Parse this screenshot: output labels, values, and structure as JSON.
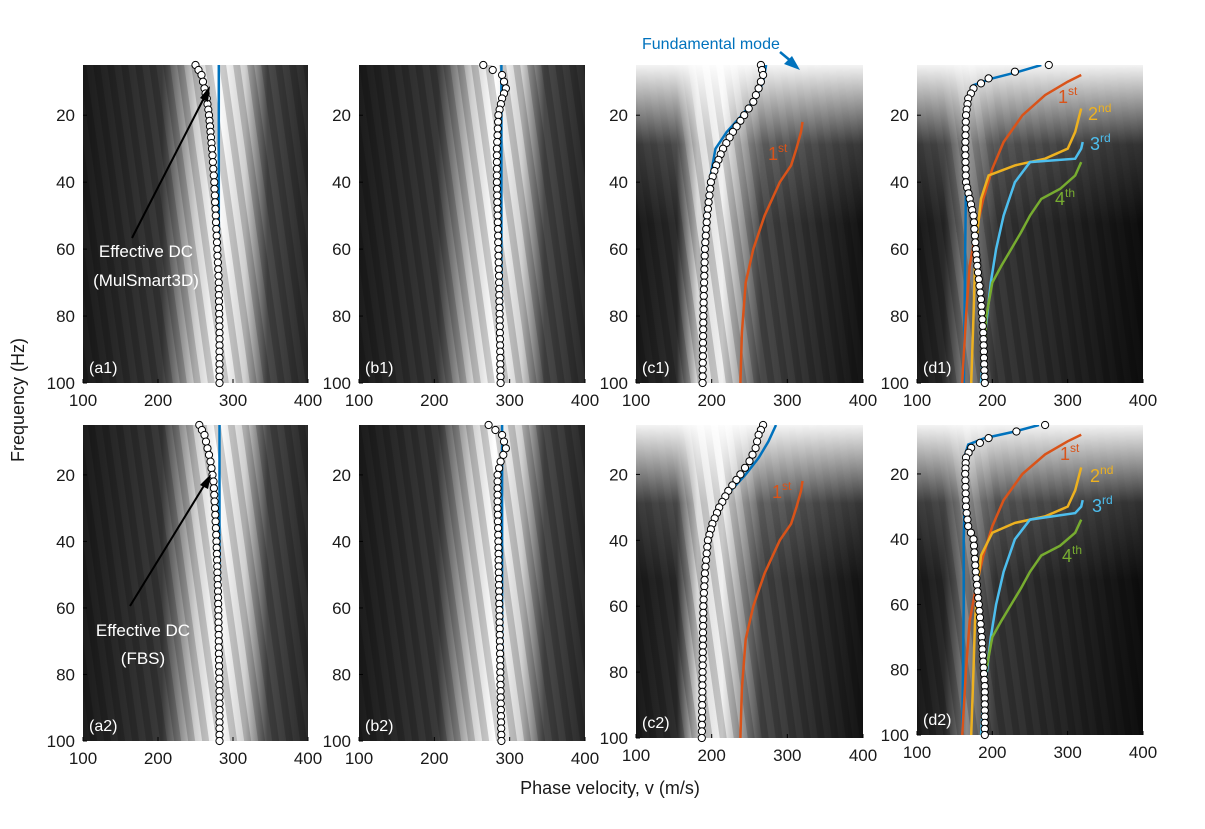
{
  "figure": {
    "x_axis_label": "Phase velocity, v (m/s)",
    "y_axis_label": "Frequency (Hz)",
    "colors": {
      "fundamental": "#0072bd",
      "mode_1st": "#d95319",
      "mode_2nd": "#edb120",
      "mode_3rd": "#4dbeee",
      "mode_4th": "#77ac30",
      "picks_marker": "#000000",
      "annotation_white": "#ffffff"
    },
    "annotations": {
      "fundamental_mode": "Fundamental mode",
      "effective_dc_1": "Effective DC",
      "effective_dc_1_sub": "(MulSmart3D)",
      "effective_dc_2": "Effective DC",
      "effective_dc_2_sub": "(FBS)",
      "mode_labels": {
        "first": {
          "base": "1",
          "sup": "st"
        },
        "second": {
          "base": "2",
          "sup": "nd"
        },
        "third": {
          "base": "3",
          "sup": "rd"
        },
        "fourth": {
          "base": "4",
          "sup": "th"
        }
      }
    }
  },
  "chart_data": [
    {
      "panel": "(a1)",
      "type": "line",
      "xlim": [
        100,
        400
      ],
      "ylim": [
        5,
        100
      ],
      "y_reversed": true,
      "xticks": [
        100,
        200,
        300,
        400
      ],
      "yticks": [
        20,
        40,
        60,
        80,
        100
      ],
      "background": "dispersion-image (grayscale)",
      "series": [
        {
          "mode": "fundamental",
          "x": [
            281,
            281
          ],
          "y": [
            5,
            100
          ]
        }
      ],
      "picks": {
        "x": [
          250,
          258,
          262,
          265,
          268,
          270,
          272,
          275,
          277,
          279,
          281,
          282,
          282
        ],
        "y": [
          5,
          8,
          12,
          15,
          20,
          25,
          30,
          40,
          50,
          60,
          70,
          85,
          100
        ]
      }
    },
    {
      "panel": "(b1)",
      "type": "line",
      "xlim": [
        100,
        400
      ],
      "ylim": [
        5,
        100
      ],
      "y_reversed": true,
      "xticks": [
        100,
        200,
        300,
        400
      ],
      "yticks": [
        20,
        40,
        60,
        80,
        100
      ],
      "background": "dispersion-image (grayscale)",
      "series": [
        {
          "mode": "fundamental",
          "x": [
            289,
            289
          ],
          "y": [
            5,
            100
          ]
        }
      ],
      "picks": {
        "x": [
          265,
          290,
          295,
          290,
          285,
          283,
          283,
          284,
          285,
          286,
          287,
          288
        ],
        "y": [
          5,
          8,
          12,
          15,
          20,
          30,
          40,
          50,
          60,
          70,
          85,
          100
        ]
      }
    },
    {
      "panel": "(c1)",
      "type": "line",
      "xlim": [
        100,
        400
      ],
      "ylim": [
        5,
        100
      ],
      "y_reversed": true,
      "xticks": [
        100,
        200,
        300,
        400
      ],
      "yticks": [
        20,
        40,
        60,
        80,
        100
      ],
      "background": "dispersion-image (grayscale)",
      "series": [
        {
          "mode": "fundamental",
          "x": [
            272,
            268,
            258,
            240,
            220,
            205,
            197,
            192,
            189,
            188,
            188
          ],
          "y": [
            5,
            10,
            15,
            20,
            25,
            30,
            40,
            50,
            60,
            80,
            100
          ]
        },
        {
          "mode": "1st",
          "x": [
            320,
            318,
            312,
            305,
            290,
            270,
            255,
            245,
            240,
            238
          ],
          "y": [
            22,
            25,
            30,
            35,
            40,
            50,
            60,
            70,
            85,
            100
          ]
        }
      ],
      "picks": {
        "x": [
          265,
          268,
          262,
          255,
          243,
          228,
          215,
          206,
          199,
          194,
          191,
          189,
          188
        ],
        "y": [
          5,
          8,
          12,
          16,
          20,
          25,
          30,
          35,
          40,
          50,
          60,
          80,
          100
        ]
      }
    },
    {
      "panel": "(d1)",
      "type": "line",
      "xlim": [
        100,
        400
      ],
      "ylim": [
        5,
        100
      ],
      "y_reversed": true,
      "xticks": [
        100,
        200,
        300,
        400
      ],
      "yticks": [
        20,
        40,
        60,
        80,
        100
      ],
      "background": "dispersion-image (grayscale)",
      "series": [
        {
          "mode": "fundamental",
          "x": [
            265,
            235,
            200,
            175,
            168,
            166,
            165,
            165,
            164,
            163,
            162
          ],
          "y": [
            5,
            7,
            9,
            11,
            14,
            20,
            30,
            40,
            60,
            80,
            100
          ]
        },
        {
          "mode": "1st",
          "x": [
            318,
            300,
            270,
            240,
            215,
            200,
            188,
            178,
            170,
            165,
            160
          ],
          "y": [
            8,
            10,
            14,
            20,
            28,
            36,
            45,
            55,
            65,
            80,
            100
          ]
        },
        {
          "mode": "2nd",
          "x": [
            318,
            310,
            300,
            270,
            230,
            195,
            185,
            180,
            177,
            175,
            172
          ],
          "y": [
            18,
            25,
            30,
            33,
            35,
            38,
            45,
            55,
            65,
            80,
            100
          ]
        },
        {
          "mode": "3rd",
          "x": [
            320,
            318,
            310,
            250,
            230,
            215,
            205,
            198,
            193,
            188,
            185
          ],
          "y": [
            28,
            30,
            33,
            34,
            40,
            50,
            60,
            70,
            80,
            90,
            100
          ]
        },
        {
          "mode": "4th",
          "x": [
            318,
            310,
            290,
            265,
            250,
            238,
            225,
            212,
            200,
            192,
            188
          ],
          "y": [
            34,
            38,
            42,
            45,
            50,
            55,
            60,
            65,
            70,
            80,
            100
          ]
        }
      ],
      "picks": {
        "x": [
          275,
          230,
          195,
          175,
          168,
          165,
          164,
          165,
          170,
          175,
          178,
          180,
          185,
          188,
          190
        ],
        "y": [
          5,
          7,
          9,
          12,
          15,
          20,
          30,
          40,
          45,
          50,
          60,
          65,
          75,
          85,
          100
        ]
      }
    },
    {
      "panel": "(a2)",
      "type": "line",
      "xlim": [
        100,
        400
      ],
      "ylim": [
        5,
        100
      ],
      "y_reversed": true,
      "xticks": [
        100,
        200,
        300,
        400
      ],
      "yticks": [
        20,
        40,
        60,
        80,
        100
      ],
      "background": "dispersion-image (grayscale)",
      "series": [
        {
          "mode": "fundamental",
          "x": [
            282,
            282
          ],
          "y": [
            5,
            100
          ]
        }
      ],
      "picks": {
        "x": [
          255,
          262,
          266,
          270,
          274,
          276,
          278,
          280,
          281,
          282,
          282
        ],
        "y": [
          5,
          8,
          12,
          16,
          22,
          30,
          40,
          55,
          70,
          85,
          100
        ]
      }
    },
    {
      "panel": "(b2)",
      "type": "line",
      "xlim": [
        100,
        400
      ],
      "ylim": [
        5,
        100
      ],
      "y_reversed": true,
      "xticks": [
        100,
        200,
        300,
        400
      ],
      "yticks": [
        20,
        40,
        60,
        80,
        100
      ],
      "background": "dispersion-image (grayscale)",
      "series": [
        {
          "mode": "fundamental",
          "x": [
            290,
            290
          ],
          "y": [
            5,
            100
          ]
        }
      ],
      "picks": {
        "x": [
          272,
          290,
          295,
          288,
          284,
          284,
          285,
          286,
          287,
          288,
          289
        ],
        "y": [
          5,
          8,
          12,
          16,
          20,
          30,
          40,
          55,
          70,
          85,
          100
        ]
      }
    },
    {
      "panel": "(c2)",
      "type": "line",
      "xlim": [
        100,
        400
      ],
      "ylim": [
        5,
        100
      ],
      "y_reversed": true,
      "xticks": [
        100,
        200,
        300,
        400
      ],
      "yticks": [
        20,
        40,
        60,
        80,
        100
      ],
      "background": "dispersion-image (grayscale)",
      "series": [
        {
          "mode": "fundamental",
          "x": [
            285,
            275,
            262,
            245,
            225,
            208,
            197,
            191,
            188,
            187,
            187
          ],
          "y": [
            5,
            10,
            15,
            20,
            25,
            30,
            40,
            50,
            60,
            80,
            100
          ]
        },
        {
          "mode": "1st",
          "x": [
            320,
            318,
            312,
            305,
            290,
            270,
            255,
            245,
            240,
            238
          ],
          "y": [
            22,
            25,
            30,
            35,
            40,
            50,
            60,
            70,
            85,
            100
          ]
        }
      ],
      "picks": {
        "x": [
          268,
          262,
          258,
          250,
          238,
          222,
          210,
          201,
          195,
          191,
          189,
          188,
          187
        ],
        "y": [
          5,
          8,
          12,
          16,
          20,
          25,
          30,
          35,
          40,
          50,
          60,
          80,
          100
        ]
      }
    },
    {
      "panel": "(d2)",
      "type": "line",
      "xlim": [
        100,
        400
      ],
      "ylim": [
        5,
        100
      ],
      "y_reversed": true,
      "xticks": [
        100,
        200,
        300,
        400
      ],
      "yticks": [
        20,
        40,
        60,
        80,
        100
      ],
      "background": "dispersion-image (grayscale)",
      "series": [
        {
          "mode": "fundamental",
          "x": [
            262,
            230,
            190,
            168,
            164,
            163,
            163,
            162,
            162,
            161,
            160
          ],
          "y": [
            5,
            7,
            9,
            11,
            14,
            20,
            30,
            40,
            60,
            80,
            100
          ]
        },
        {
          "mode": "1st",
          "x": [
            318,
            300,
            270,
            240,
            215,
            200,
            188,
            178,
            170,
            165,
            160
          ],
          "y": [
            8,
            10,
            14,
            20,
            28,
            36,
            45,
            55,
            65,
            80,
            100
          ]
        },
        {
          "mode": "2nd",
          "x": [
            318,
            310,
            300,
            270,
            230,
            200,
            185,
            180,
            177,
            175,
            172
          ],
          "y": [
            18,
            25,
            30,
            33,
            35,
            38,
            45,
            55,
            65,
            80,
            100
          ]
        },
        {
          "mode": "3rd",
          "x": [
            320,
            318,
            310,
            250,
            230,
            215,
            205,
            198,
            193,
            188,
            185
          ],
          "y": [
            28,
            30,
            32,
            34,
            40,
            50,
            60,
            70,
            80,
            90,
            100
          ]
        },
        {
          "mode": "4th",
          "x": [
            318,
            310,
            290,
            265,
            250,
            238,
            225,
            212,
            200,
            192,
            188
          ],
          "y": [
            34,
            38,
            42,
            45,
            50,
            55,
            60,
            65,
            70,
            80,
            100
          ]
        }
      ],
      "picks": {
        "x": [
          270,
          232,
          195,
          172,
          165,
          164,
          165,
          168,
          175,
          178,
          182,
          186,
          190,
          190
        ],
        "y": [
          5,
          7,
          9,
          12,
          15,
          20,
          30,
          36,
          40,
          50,
          60,
          70,
          85,
          100
        ]
      }
    }
  ]
}
